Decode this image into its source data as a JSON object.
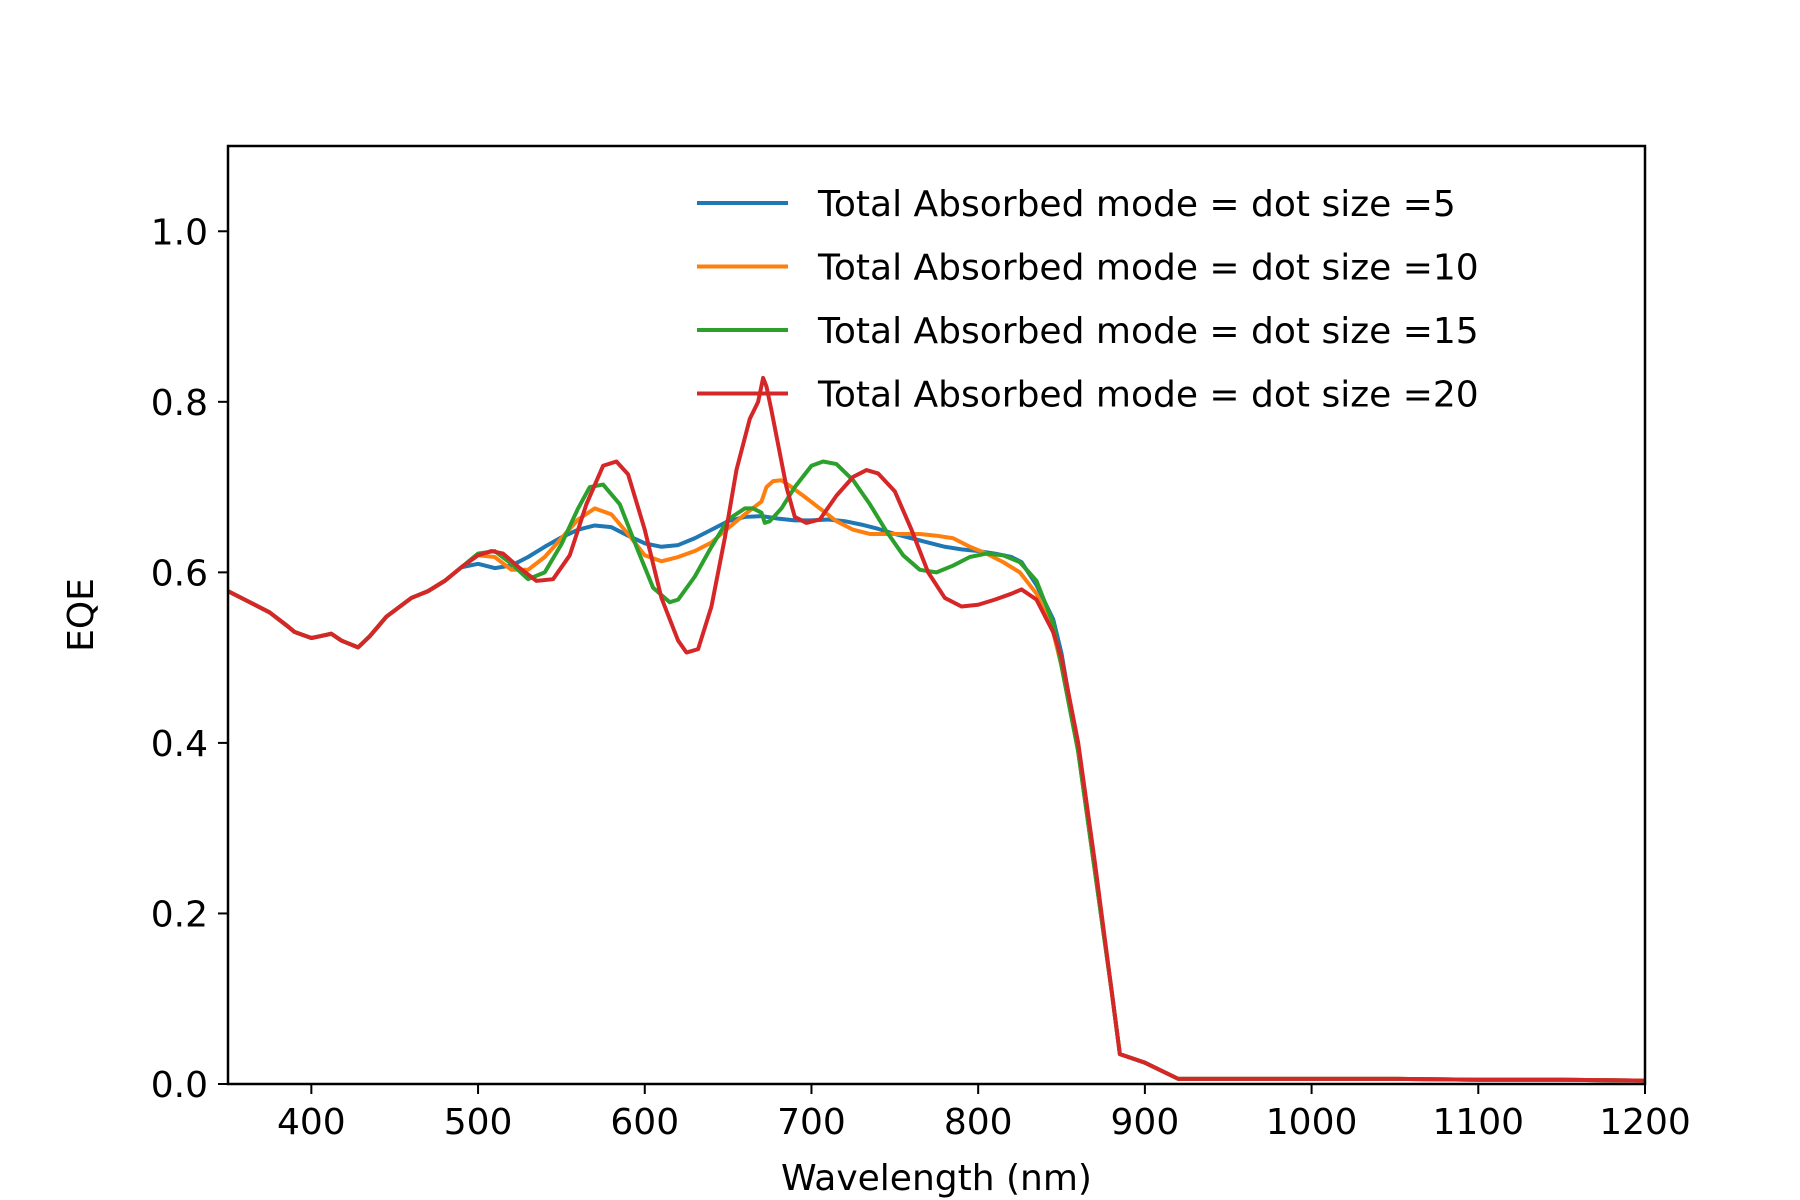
{
  "chart_data": {
    "type": "line",
    "title": "",
    "xlabel": "Wavelength (nm)",
    "ylabel": "EQE",
    "xlim": [
      350,
      1200
    ],
    "ylim": [
      0.0,
      1.1
    ],
    "xticks": [
      400,
      500,
      600,
      700,
      800,
      900,
      1000,
      1100,
      1200
    ],
    "xtick_labels": [
      "400",
      "500",
      "600",
      "700",
      "800",
      "900",
      "1000",
      "1100",
      "1200"
    ],
    "yticks": [
      0.0,
      0.2,
      0.4,
      0.6,
      0.8,
      1.0
    ],
    "ytick_labels": [
      "0.0",
      "0.2",
      "0.4",
      "0.6",
      "0.8",
      "1.0"
    ],
    "grid": false,
    "legend_position": "top-right",
    "series": [
      {
        "name": "Total Absorbed mode = dot size =5",
        "color": "#1f77b4",
        "x": [
          350,
          360,
          375,
          385,
          390,
          400,
          405,
          412,
          418,
          428,
          435,
          445,
          460,
          470,
          480,
          490,
          500,
          510,
          520,
          530,
          540,
          550,
          560,
          570,
          580,
          590,
          600,
          610,
          620,
          630,
          640,
          650,
          660,
          670,
          680,
          690,
          700,
          710,
          720,
          730,
          740,
          750,
          760,
          770,
          780,
          790,
          800,
          810,
          820,
          826,
          835,
          845,
          850,
          860,
          870,
          880,
          885,
          900,
          920,
          950,
          1000,
          1050,
          1100,
          1150,
          1200
        ],
        "y": [
          0.578,
          0.568,
          0.553,
          0.538,
          0.53,
          0.523,
          0.525,
          0.528,
          0.52,
          0.512,
          0.525,
          0.548,
          0.57,
          0.578,
          0.59,
          0.606,
          0.61,
          0.605,
          0.608,
          0.618,
          0.63,
          0.641,
          0.65,
          0.655,
          0.653,
          0.643,
          0.634,
          0.63,
          0.632,
          0.64,
          0.65,
          0.66,
          0.665,
          0.666,
          0.663,
          0.661,
          0.661,
          0.662,
          0.66,
          0.656,
          0.651,
          0.645,
          0.64,
          0.635,
          0.63,
          0.627,
          0.625,
          0.622,
          0.618,
          0.612,
          0.585,
          0.545,
          0.505,
          0.39,
          0.25,
          0.11,
          0.035,
          0.025,
          0.006,
          0.006,
          0.006,
          0.006,
          0.005,
          0.005,
          0.004
        ]
      },
      {
        "name": "Total Absorbed mode = dot size =10",
        "color": "#ff7f0e",
        "x": [
          350,
          360,
          375,
          385,
          390,
          400,
          405,
          412,
          418,
          428,
          435,
          445,
          460,
          470,
          480,
          490,
          500,
          510,
          520,
          530,
          540,
          550,
          560,
          570,
          580,
          590,
          600,
          610,
          620,
          630,
          640,
          650,
          660,
          670,
          673,
          677,
          682,
          688,
          695,
          705,
          715,
          725,
          735,
          745,
          755,
          765,
          775,
          785,
          795,
          805,
          815,
          825,
          835,
          845,
          850,
          860,
          870,
          880,
          885,
          900,
          920,
          950,
          1000,
          1050,
          1100,
          1150,
          1200
        ],
        "y": [
          0.578,
          0.568,
          0.553,
          0.538,
          0.53,
          0.523,
          0.525,
          0.528,
          0.52,
          0.512,
          0.525,
          0.548,
          0.57,
          0.578,
          0.59,
          0.606,
          0.62,
          0.618,
          0.603,
          0.603,
          0.618,
          0.64,
          0.662,
          0.675,
          0.668,
          0.645,
          0.62,
          0.613,
          0.618,
          0.625,
          0.635,
          0.652,
          0.668,
          0.683,
          0.7,
          0.707,
          0.708,
          0.7,
          0.69,
          0.675,
          0.66,
          0.65,
          0.645,
          0.645,
          0.645,
          0.645,
          0.643,
          0.64,
          0.63,
          0.622,
          0.612,
          0.6,
          0.575,
          0.53,
          0.49,
          0.39,
          0.25,
          0.11,
          0.035,
          0.025,
          0.006,
          0.006,
          0.006,
          0.006,
          0.005,
          0.005,
          0.004
        ]
      },
      {
        "name": "Total Absorbed mode = dot size =15",
        "color": "#2ca02c",
        "x": [
          350,
          360,
          375,
          385,
          390,
          400,
          405,
          412,
          418,
          428,
          435,
          445,
          460,
          470,
          480,
          490,
          500,
          510,
          520,
          530,
          540,
          550,
          560,
          567,
          575,
          585,
          595,
          605,
          615,
          620,
          630,
          640,
          650,
          660,
          665,
          670,
          672,
          675,
          682,
          690,
          700,
          707,
          715,
          725,
          735,
          745,
          755,
          765,
          775,
          785,
          795,
          805,
          815,
          825,
          835,
          845,
          850,
          860,
          870,
          880,
          885,
          900,
          920,
          950,
          1000,
          1050,
          1100,
          1150,
          1200
        ],
        "y": [
          0.578,
          0.568,
          0.553,
          0.538,
          0.53,
          0.523,
          0.525,
          0.528,
          0.52,
          0.512,
          0.525,
          0.548,
          0.57,
          0.578,
          0.59,
          0.606,
          0.622,
          0.625,
          0.61,
          0.592,
          0.6,
          0.633,
          0.675,
          0.7,
          0.703,
          0.68,
          0.63,
          0.582,
          0.565,
          0.568,
          0.595,
          0.63,
          0.662,
          0.675,
          0.675,
          0.67,
          0.658,
          0.66,
          0.675,
          0.7,
          0.725,
          0.73,
          0.727,
          0.708,
          0.68,
          0.648,
          0.62,
          0.603,
          0.6,
          0.608,
          0.618,
          0.622,
          0.62,
          0.612,
          0.59,
          0.54,
          0.49,
          0.39,
          0.25,
          0.11,
          0.035,
          0.025,
          0.006,
          0.006,
          0.006,
          0.006,
          0.005,
          0.005,
          0.004
        ]
      },
      {
        "name": "Total Absorbed mode = dot size =20",
        "color": "#d62728",
        "x": [
          350,
          360,
          375,
          385,
          390,
          400,
          405,
          412,
          418,
          428,
          435,
          445,
          460,
          470,
          480,
          490,
          500,
          508,
          515,
          525,
          535,
          545,
          555,
          565,
          575,
          583,
          590,
          600,
          610,
          620,
          625,
          632,
          640,
          648,
          655,
          663,
          668,
          671,
          673,
          676,
          680,
          685,
          690,
          697,
          705,
          715,
          725,
          733,
          740,
          750,
          760,
          770,
          780,
          790,
          800,
          810,
          820,
          826,
          835,
          845,
          850,
          860,
          870,
          880,
          885,
          900,
          920,
          950,
          1000,
          1050,
          1100,
          1150,
          1200
        ],
        "y": [
          0.578,
          0.568,
          0.553,
          0.538,
          0.53,
          0.523,
          0.525,
          0.528,
          0.52,
          0.512,
          0.525,
          0.548,
          0.57,
          0.578,
          0.59,
          0.606,
          0.62,
          0.625,
          0.622,
          0.605,
          0.59,
          0.592,
          0.62,
          0.68,
          0.725,
          0.73,
          0.715,
          0.65,
          0.57,
          0.52,
          0.506,
          0.51,
          0.56,
          0.64,
          0.72,
          0.78,
          0.8,
          0.828,
          0.818,
          0.79,
          0.75,
          0.7,
          0.665,
          0.658,
          0.662,
          0.69,
          0.712,
          0.72,
          0.716,
          0.695,
          0.65,
          0.6,
          0.57,
          0.56,
          0.562,
          0.568,
          0.575,
          0.58,
          0.568,
          0.53,
          0.5,
          0.4,
          0.26,
          0.11,
          0.035,
          0.025,
          0.006,
          0.006,
          0.006,
          0.006,
          0.005,
          0.005,
          0.004
        ]
      }
    ]
  }
}
